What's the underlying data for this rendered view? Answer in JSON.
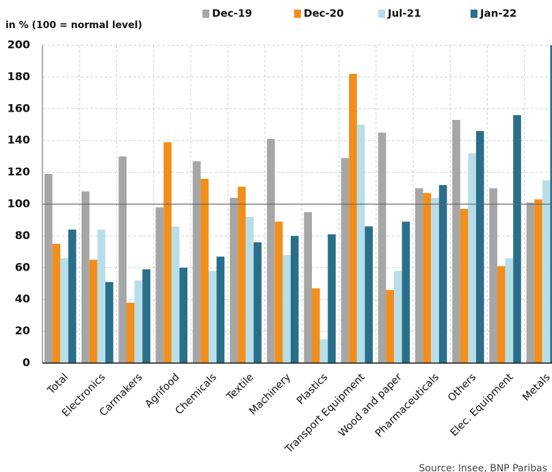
{
  "chart_data": {
    "type": "bar",
    "y_axis_label": "in % (100 = normal level)",
    "source": "Source: Insee, BNP Paribas",
    "categories": [
      "Total",
      "Electronics",
      "Carmakers",
      "Agrifood",
      "Chemicals",
      "Textile",
      "Machinery",
      "Plastics",
      "Transport Equipment",
      "Wood and paper",
      "Pharmaceuticals",
      "Others",
      "Elec. Equipment",
      "Metals"
    ],
    "series": [
      {
        "name": "Dec-19",
        "color": "#a6a6a6",
        "values": [
          119,
          108,
          130,
          98,
          127,
          104,
          141,
          95,
          129,
          145,
          110,
          153,
          110,
          101
        ]
      },
      {
        "name": "Dec-20",
        "color": "#f28e1c",
        "values": [
          75,
          65,
          38,
          139,
          116,
          111,
          89,
          47,
          182,
          46,
          107,
          97,
          61,
          103
        ]
      },
      {
        "name": "Jul-21",
        "color": "#b7dfea",
        "values": [
          66,
          84,
          52,
          86,
          58,
          92,
          68,
          15,
          150,
          58,
          104,
          132,
          66,
          115
        ]
      },
      {
        "name": "Jan-22",
        "color": "#2a6f8a",
        "values": [
          84,
          51,
          59,
          60,
          67,
          76,
          80,
          81,
          86,
          89,
          112,
          146,
          156,
          200
        ]
      }
    ],
    "ylim": [
      0,
      200
    ],
    "yticks": [
      0,
      20,
      40,
      60,
      80,
      100,
      120,
      140,
      160,
      180,
      200
    ],
    "reference_line": 100,
    "grid": true
  }
}
